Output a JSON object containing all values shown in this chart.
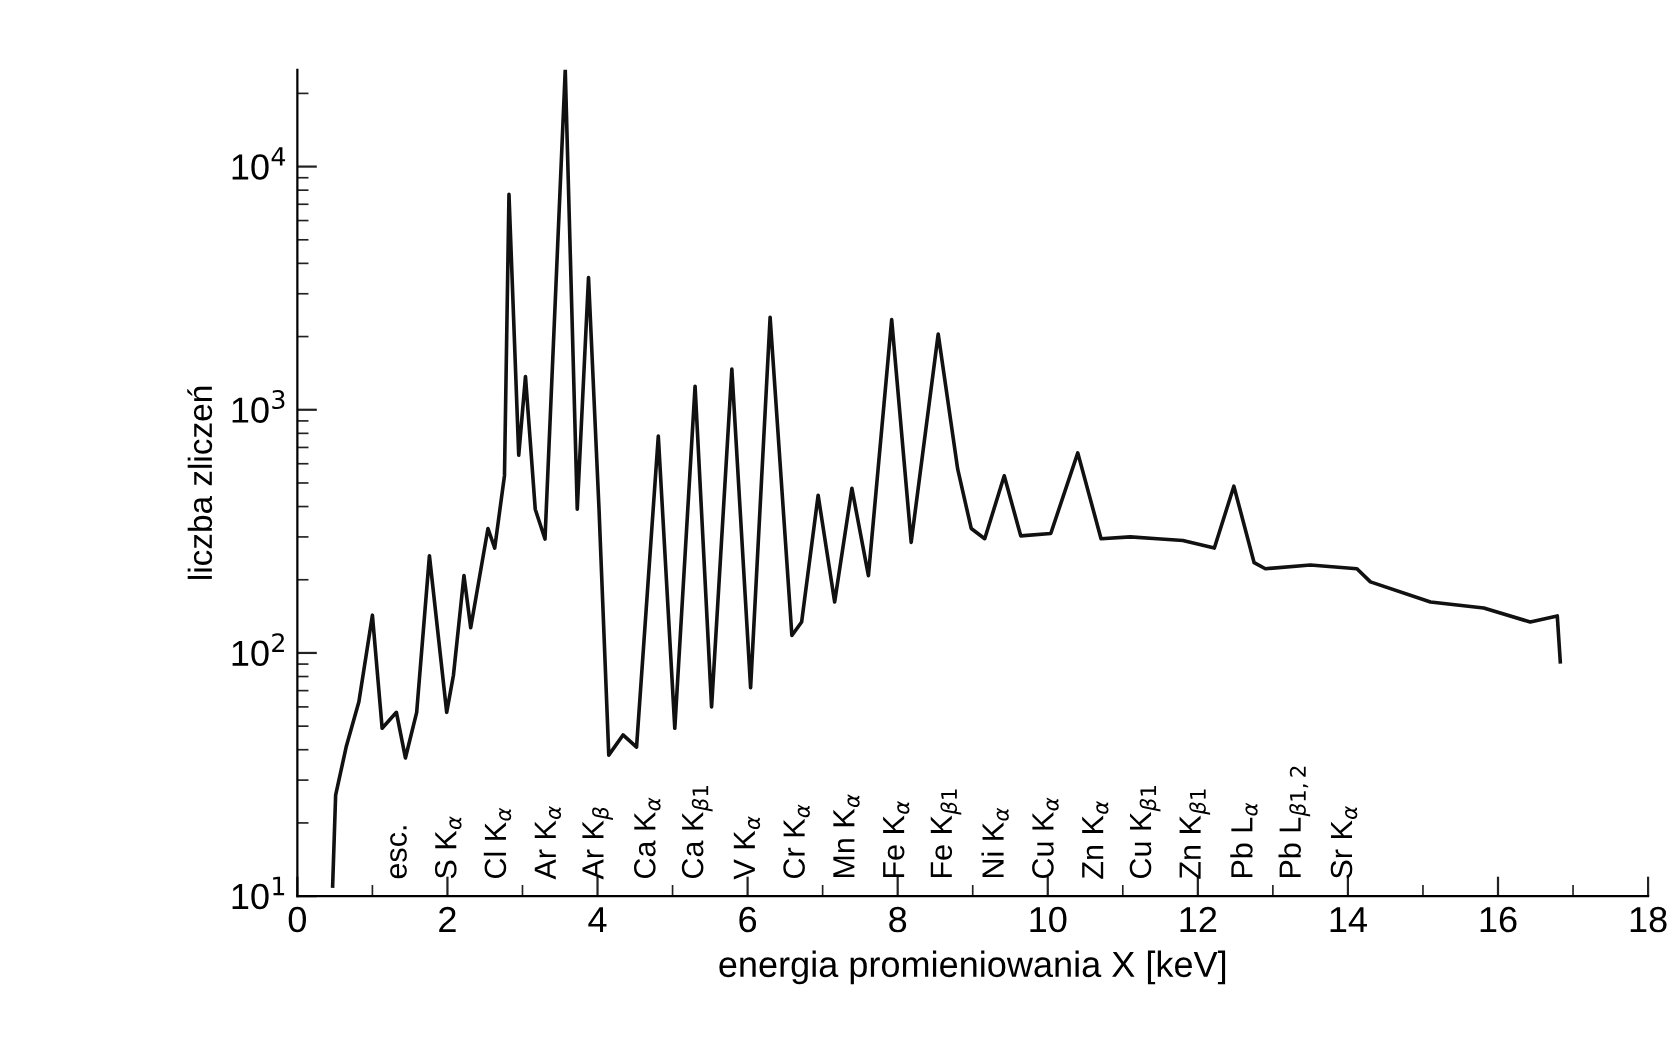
{
  "chart_data": {
    "type": "line",
    "xlabel": "energia promieniowania X [keV]",
    "ylabel": "liczba zliczeń",
    "x": [
      0.47,
      0.51,
      0.65,
      0.82,
      1.0,
      1.13,
      1.32,
      1.44,
      1.59,
      1.76,
      1.99,
      2.08,
      2.22,
      2.31,
      2.54,
      2.63,
      2.76,
      2.82,
      2.95,
      3.04,
      3.17,
      3.3,
      3.57,
      3.73,
      3.88,
      4.02,
      4.15,
      4.34,
      4.52,
      4.81,
      5.03,
      5.3,
      5.52,
      5.79,
      6.04,
      6.3,
      6.59,
      6.72,
      6.94,
      7.16,
      7.39,
      7.61,
      7.92,
      8.18,
      8.54,
      8.8,
      8.98,
      9.16,
      9.42,
      9.64,
      10.04,
      10.4,
      10.71,
      11.1,
      11.46,
      11.8,
      12.22,
      12.48,
      12.75,
      12.9,
      13.5,
      14.12,
      14.3,
      15.1,
      15.81,
      16.43,
      16.79,
      16.83
    ],
    "series": [
      {
        "color": "#111111",
        "values": [
          11,
          26,
          41,
          63,
          143,
          49,
          57,
          37,
          57,
          251,
          57,
          81,
          208,
          127,
          325,
          270,
          536,
          7700,
          650,
          1370,
          390,
          294,
          25000,
          390,
          3500,
          390,
          38,
          46,
          41,
          780,
          49,
          1250,
          60,
          1470,
          72,
          2400,
          118,
          134,
          445,
          162,
          475,
          208,
          2350,
          285,
          2050,
          570,
          325,
          295,
          535,
          303,
          310,
          665,
          295,
          300,
          295,
          290,
          270,
          485,
          235,
          222,
          230,
          222,
          196,
          162,
          153,
          134,
          142,
          92
        ]
      }
    ],
    "xlim": [
      0,
      18
    ],
    "ylim": [
      10,
      25000
    ],
    "log": "y",
    "xticks": [
      0,
      2,
      4,
      6,
      8,
      10,
      12,
      14,
      16,
      18
    ],
    "yticks": [
      {
        "value": 10,
        "label": "10$^{1}$"
      },
      {
        "value": 100,
        "label": "10$^{2}$"
      },
      {
        "value": 1000,
        "label": "10$^{3}$"
      },
      {
        "value": 10000,
        "label": "10$^{4}$"
      }
    ],
    "grid": false,
    "legend": false,
    "marker": "none",
    "line_style": "solid",
    "annotations": [
      "esc.",
      "S K$_{α}$",
      "Cl K$_{α}$",
      "Ar K$_{α}$",
      "Ar K$_{β}$",
      "Ca K$_{α}$",
      "Ca K$_{β1}$",
      "V K$_{α}$",
      "Cr K$_{α}$",
      "Mn K$_{α}$",
      "Fe K$_{α}$",
      "Fe K$_{β1}$",
      "Ni K$_{α}$",
      "Cu K$_{α}$",
      "Zn K$_{α}$",
      "Cu K$_{β1}$",
      "Zn K$_{β1}$",
      "Pb L$_{α}$",
      "Pb L$_{β1,2}$",
      "Sr K$_{α}$"
    ]
  }
}
